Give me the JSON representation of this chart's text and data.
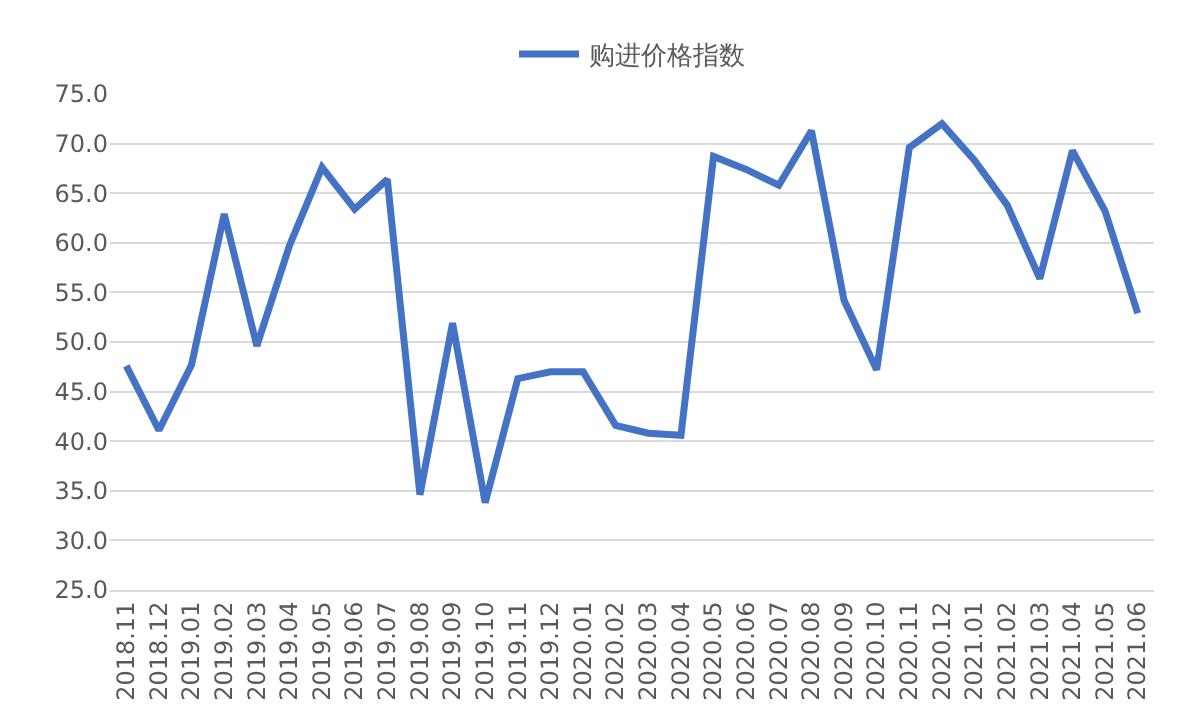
{
  "chart_data": {
    "type": "line",
    "categories": [
      "2018.11",
      "2018.12",
      "2019.01",
      "2019.02",
      "2019.03",
      "2019.04",
      "2019.05",
      "2019.06",
      "2019.07",
      "2019.08",
      "2019.09",
      "2019.10",
      "2019.11",
      "2019.12",
      "2020.01",
      "2020.02",
      "2020.03",
      "2020.04",
      "2020.05",
      "2020.06",
      "2020.07",
      "2020.08",
      "2020.09",
      "2020.10",
      "2020.11",
      "2020.12",
      "2021.01",
      "2021.02",
      "2021.03",
      "2021.04",
      "2021.05",
      "2021.06"
    ],
    "series": [
      {
        "name": "购进价格指数",
        "color": "#4472c4",
        "values": [
          47.6,
          41.1,
          47.7,
          62.9,
          49.6,
          59.7,
          67.6,
          63.4,
          66.4,
          34.6,
          51.9,
          33.8,
          46.3,
          47.0,
          47.0,
          41.6,
          40.8,
          40.6,
          68.7,
          67.4,
          65.8,
          71.3,
          54.2,
          47.2,
          69.6,
          72.0,
          68.3,
          63.8,
          56.4,
          69.3,
          63.2,
          52.9
        ]
      }
    ],
    "ylim": [
      25,
      75
    ],
    "yticks": [
      {
        "value": 25,
        "label": "25.0"
      },
      {
        "value": 30,
        "label": "30.0"
      },
      {
        "value": 35,
        "label": "35.0"
      },
      {
        "value": 40,
        "label": "40.0"
      },
      {
        "value": 45,
        "label": "45.0"
      },
      {
        "value": 50,
        "label": "50.0"
      },
      {
        "value": 55,
        "label": "55.0"
      },
      {
        "value": 60,
        "label": "60.0"
      },
      {
        "value": 65,
        "label": "65.0"
      },
      {
        "value": 70,
        "label": "70.0"
      },
      {
        "value": 75,
        "label": "75.0"
      }
    ],
    "grid": "y",
    "legend": "top",
    "marker": "none",
    "line_style": "solid"
  }
}
